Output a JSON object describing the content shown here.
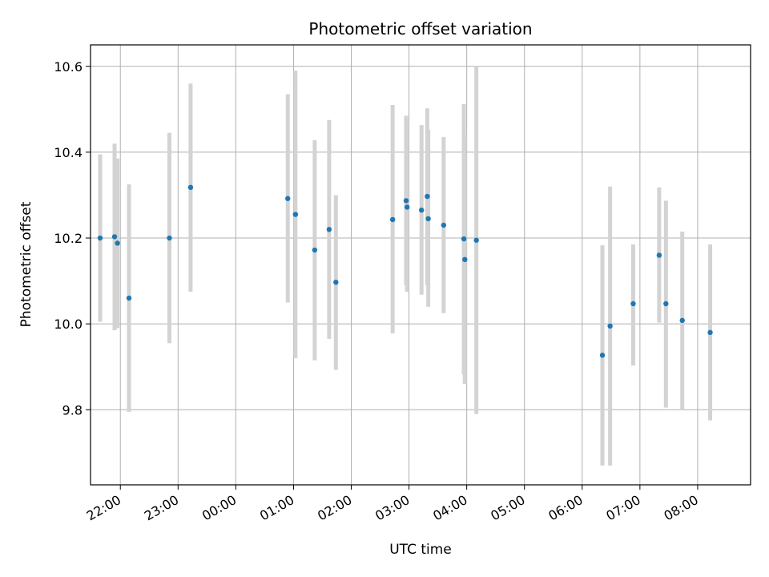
{
  "chart_data": {
    "type": "scatter",
    "title": "Photometric offset variation",
    "xlabel": "UTC time",
    "ylabel": "Photometric offset",
    "x_axis_type": "time",
    "x_range": [
      "21:29",
      "08:55"
    ],
    "ylim": [
      9.625,
      10.65
    ],
    "grid": true,
    "x_tick_labels": [
      "22:00",
      "23:00",
      "00:00",
      "01:00",
      "02:00",
      "03:00",
      "04:00",
      "05:00",
      "06:00",
      "07:00",
      "08:00"
    ],
    "y_tick_labels": [
      "9.8",
      "10.0",
      "10.2",
      "10.4",
      "10.6"
    ],
    "y_ticks": [
      9.8,
      10.0,
      10.2,
      10.4,
      10.6
    ],
    "marker_color": "#1f77b4",
    "errorbar_color": "#d3d3d3",
    "points": [
      {
        "time": "21:39",
        "y": 10.2,
        "err_low": 10.005,
        "err_high": 10.395
      },
      {
        "time": "21:54",
        "y": 10.203,
        "err_low": 9.985,
        "err_high": 10.42
      },
      {
        "time": "21:57",
        "y": 10.188,
        "err_low": 9.99,
        "err_high": 10.385
      },
      {
        "time": "22:09",
        "y": 10.06,
        "err_low": 9.795,
        "err_high": 10.325
      },
      {
        "time": "22:51",
        "y": 10.2,
        "err_low": 9.955,
        "err_high": 10.445
      },
      {
        "time": "23:13",
        "y": 10.318,
        "err_low": 10.075,
        "err_high": 10.56
      },
      {
        "time": "00:54",
        "y": 10.292,
        "err_low": 10.05,
        "err_high": 10.535
      },
      {
        "time": "01:02",
        "y": 10.255,
        "err_low": 9.92,
        "err_high": 10.59
      },
      {
        "time": "01:22",
        "y": 10.172,
        "err_low": 9.915,
        "err_high": 10.428
      },
      {
        "time": "01:37",
        "y": 10.22,
        "err_low": 9.965,
        "err_high": 10.475
      },
      {
        "time": "01:44",
        "y": 10.097,
        "err_low": 9.893,
        "err_high": 10.3
      },
      {
        "time": "02:43",
        "y": 10.243,
        "err_low": 9.978,
        "err_high": 10.51
      },
      {
        "time": "02:57",
        "y": 10.287,
        "err_low": 10.09,
        "err_high": 10.485
      },
      {
        "time": "02:58",
        "y": 10.272,
        "err_low": 10.075,
        "err_high": 10.468
      },
      {
        "time": "03:13",
        "y": 10.265,
        "err_low": 10.068,
        "err_high": 10.463
      },
      {
        "time": "03:19",
        "y": 10.297,
        "err_low": 10.09,
        "err_high": 10.502
      },
      {
        "time": "03:20",
        "y": 10.245,
        "err_low": 10.04,
        "err_high": 10.452
      },
      {
        "time": "03:36",
        "y": 10.23,
        "err_low": 10.025,
        "err_high": 10.435
      },
      {
        "time": "03:57",
        "y": 10.198,
        "err_low": 9.882,
        "err_high": 10.512
      },
      {
        "time": "03:58",
        "y": 10.15,
        "err_low": 9.86,
        "err_high": 10.44
      },
      {
        "time": "04:10",
        "y": 10.195,
        "err_low": 9.79,
        "err_high": 10.6
      },
      {
        "time": "06:21",
        "y": 9.927,
        "err_low": 9.67,
        "err_high": 10.183
      },
      {
        "time": "06:29",
        "y": 9.995,
        "err_low": 9.67,
        "err_high": 10.32
      },
      {
        "time": "06:53",
        "y": 10.047,
        "err_low": 9.903,
        "err_high": 10.185
      },
      {
        "time": "07:20",
        "y": 10.16,
        "err_low": 10.003,
        "err_high": 10.318
      },
      {
        "time": "07:27",
        "y": 10.047,
        "err_low": 9.805,
        "err_high": 10.287
      },
      {
        "time": "07:44",
        "y": 10.008,
        "err_low": 9.8,
        "err_high": 10.215
      },
      {
        "time": "08:13",
        "y": 9.98,
        "err_low": 9.775,
        "err_high": 10.185
      }
    ]
  }
}
